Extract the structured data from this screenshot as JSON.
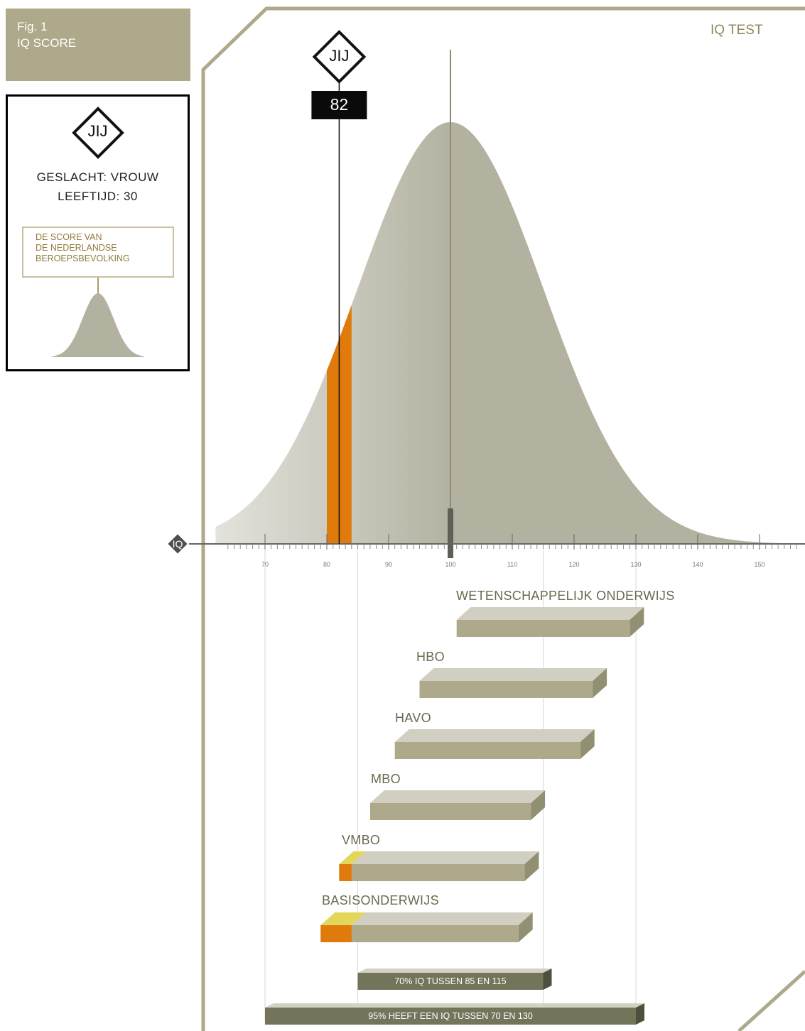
{
  "header": {
    "fig": "Fig. 1",
    "title": "IQ SCORE",
    "test_name": "IQ TEST"
  },
  "legend": {
    "you_label": "JIJ",
    "gender": "GESLACHT: VROUW",
    "age": "LEEFTIJD: 30",
    "note_lines": [
      "DE SCORE VAN",
      "DE NEDERLANDSE",
      "BEROEPSBEVOLKING"
    ]
  },
  "score": {
    "you_label": "JIJ",
    "value": 82,
    "value_text": "82"
  },
  "axis": {
    "label": "IQ",
    "ticks": [
      "70",
      "80",
      "90",
      "100",
      "110",
      "120",
      "130",
      "140",
      "150"
    ]
  },
  "colors": {
    "frame": "#aea98a",
    "curve": "#b3b1a0",
    "highlight": "#e07a0b",
    "yellow": "#e3d75a",
    "dark_bar": "#74745a"
  },
  "chart_data": {
    "type": "area",
    "title": "IQ SCORE",
    "xlabel": "IQ",
    "xlim": [
      62,
      157
    ],
    "distribution": {
      "mean": 100,
      "sd": 15
    },
    "highlight_band": [
      80,
      84
    ],
    "marker": 82,
    "education_ranges": [
      {
        "label": "WETENSCHAPPELIJK ONDERWIJS",
        "from": 101,
        "to": 129
      },
      {
        "label": "HBO",
        "from": 95,
        "to": 123
      },
      {
        "label": "HAVO",
        "from": 91,
        "to": 121
      },
      {
        "label": "MBO",
        "from": 87,
        "to": 113
      },
      {
        "label": "VMBO",
        "from": 82,
        "to": 112
      },
      {
        "label": "BASISONDERWIJS",
        "from": 79,
        "to": 111
      }
    ],
    "spread_bars": [
      {
        "label": "70% IQ TUSSEN 85 EN 115",
        "from": 85,
        "to": 115
      },
      {
        "label": "95% HEEFT EEN IQ TUSSEN 70 EN 130",
        "from": 70,
        "to": 130
      }
    ]
  }
}
